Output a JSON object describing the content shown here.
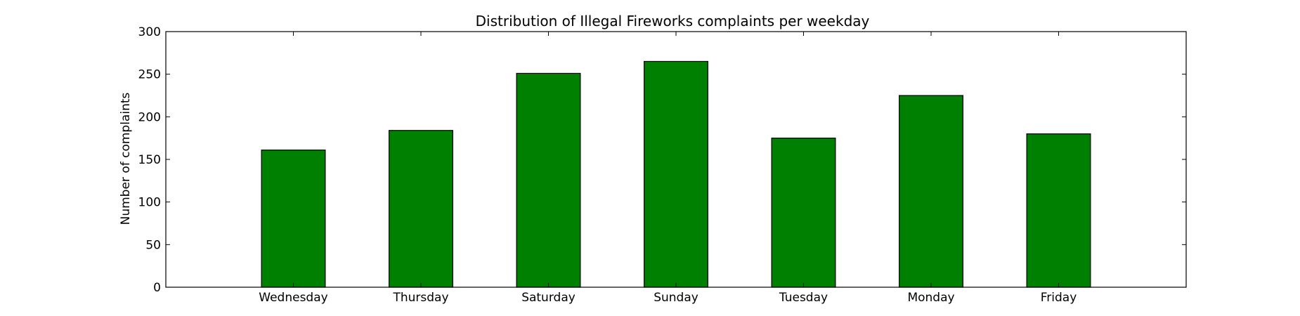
{
  "chart_data": {
    "type": "bar",
    "title": "Distribution of  Illegal Fireworks complaints per weekday",
    "xlabel": "",
    "ylabel": "Number of complaints",
    "categories": [
      "Wednesday",
      "Thursday",
      "Saturday",
      "Sunday",
      "Tuesday",
      "Monday",
      "Friday"
    ],
    "values": [
      161,
      184,
      251,
      265,
      175,
      225,
      180
    ],
    "ylim": [
      0,
      300
    ],
    "yticks": [
      0,
      50,
      100,
      150,
      200,
      250,
      300
    ],
    "xlim": [
      -1,
      7
    ],
    "bar_width": 0.5,
    "bar_color": "#008000",
    "grid": false,
    "legend": "none"
  }
}
